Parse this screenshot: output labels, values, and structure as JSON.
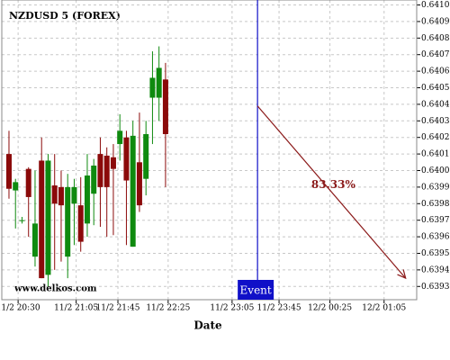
{
  "chart_data": {
    "type": "candlestick",
    "title": "NZDUSD 5 (FOREX)",
    "watermark": "www.delkos.com",
    "x_label": "Date",
    "up_color": "#0f8a0f",
    "down_color": "#8b0a0a",
    "grid": true,
    "xlim": [
      -1.1,
      62.5
    ],
    "xticks": [
      {
        "value": 1.4,
        "label": "11/2 20:30"
      },
      {
        "value": 10.3,
        "label": "11/2 21:05"
      },
      {
        "value": 16.7,
        "label": "11/2 21:45"
      },
      {
        "value": 24.4,
        "label": "11/2 22:25"
      },
      {
        "value": 34.2,
        "label": "11/2 23:05"
      },
      {
        "value": 41.4,
        "label": "11/2 23:45"
      },
      {
        "value": 49.2,
        "label": "12/2 00:25"
      },
      {
        "value": 57.5,
        "label": "12/2 01:05"
      }
    ],
    "ylim": [
      0.63922,
      0.64103
    ],
    "yticks": [
      0.6393,
      0.6394,
      0.6395,
      0.6396,
      0.6397,
      0.6398,
      0.6399,
      {
        "value": 0.64,
        "label": "0.6400"
      },
      0.6401,
      0.6402,
      0.6403,
      0.6404,
      0.6405,
      0.6406,
      0.6407,
      0.6408,
      0.6409,
      {
        "value": 0.641,
        "label": "0.6410"
      }
    ],
    "open": [
      0.6401,
      0.63988,
      0.6397,
      0.64001,
      0.63948,
      0.64006,
      0.63937,
      0.63991,
      0.6399,
      0.63948,
      0.6398,
      0.63979,
      0.63968,
      0.63986,
      0.6401,
      0.64009,
      0.64008,
      0.64016,
      0.6402,
      0.63954,
      0.64005,
      0.63995,
      0.64044,
      0.64044,
      0.64055
    ],
    "high": [
      0.64024,
      0.63995,
      0.63972,
      0.64002,
      0.64,
      0.6402,
      0.6401,
      0.6401,
      0.64,
      0.63998,
      0.63995,
      0.63996,
      0.6401,
      0.64007,
      0.6402,
      0.64014,
      0.64016,
      0.64034,
      0.64024,
      0.6403,
      0.64035,
      0.6403,
      0.64072,
      0.64075,
      0.64065
    ],
    "low": [
      0.63983,
      0.63965,
      0.63968,
      0.6396,
      0.63942,
      0.63935,
      0.6393,
      0.6394,
      0.63945,
      0.63935,
      0.63955,
      0.63951,
      0.6396,
      0.63967,
      0.63966,
      0.6396,
      0.63961,
      0.64006,
      0.63955,
      0.63954,
      0.63975,
      0.63985,
      0.64016,
      0.6403,
      0.6399
    ],
    "close": [
      0.63989,
      0.63993,
      0.6397,
      0.63984,
      0.63968,
      0.63935,
      0.64006,
      0.6398,
      0.63979,
      0.6399,
      0.6399,
      0.63957,
      0.63997,
      0.64003,
      0.6399,
      0.6399,
      0.64001,
      0.64024,
      0.63994,
      0.64021,
      0.63979,
      0.64022,
      0.64056,
      0.64062,
      0.64022
    ],
    "event": {
      "x": 38.1,
      "label": "Event",
      "color": "#1010c8"
    },
    "projection": {
      "start": [
        38.1,
        0.64039
      ],
      "end": [
        60.8,
        0.63935
      ],
      "label": "83.33%",
      "color": "#8b1a1a"
    }
  }
}
